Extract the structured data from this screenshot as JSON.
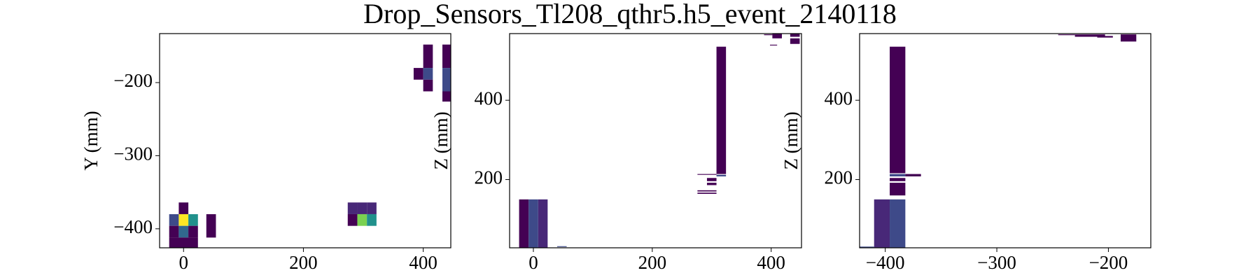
{
  "title": "Drop_Sensors_Tl208_qthr5.h5_event_2140118",
  "chart_data": [
    {
      "type": "heatmap",
      "ylabel": "Y (mm)",
      "xlim": [
        -40,
        446
      ],
      "ylim": [
        -426,
        -133
      ],
      "xticks": [
        0,
        200,
        400
      ],
      "yticks": [
        {
          "value": -200,
          "label": "−200"
        },
        {
          "value": -300,
          "label": "−300"
        },
        {
          "value": -400,
          "label": "−400"
        }
      ],
      "cells": [
        {
          "x": [
            -8,
            8
          ],
          "y": [
            -380,
            -364
          ],
          "color": "#440154"
        },
        {
          "x": [
            -24,
            -8
          ],
          "y": [
            -396,
            -380
          ],
          "color": "#3e4a89"
        },
        {
          "x": [
            -8,
            8
          ],
          "y": [
            -396,
            -380
          ],
          "color": "#fde725"
        },
        {
          "x": [
            8,
            24
          ],
          "y": [
            -396,
            -380
          ],
          "color": "#21918c"
        },
        {
          "x": [
            -24,
            -8
          ],
          "y": [
            -412,
            -396
          ],
          "color": "#440154"
        },
        {
          "x": [
            -8,
            8
          ],
          "y": [
            -412,
            -396
          ],
          "color": "#31688e"
        },
        {
          "x": [
            8,
            24
          ],
          "y": [
            -412,
            -396
          ],
          "color": "#440154"
        },
        {
          "x": [
            -24,
            24
          ],
          "y": [
            -428,
            -412
          ],
          "color": "#440154"
        },
        {
          "x": [
            38,
            54
          ],
          "y": [
            -412,
            -380
          ],
          "color": "#440154"
        },
        {
          "x": [
            274,
            290
          ],
          "y": [
            -380,
            -364
          ],
          "color": "#482878"
        },
        {
          "x": [
            290,
            306
          ],
          "y": [
            -380,
            -364
          ],
          "color": "#482878"
        },
        {
          "x": [
            306,
            322
          ],
          "y": [
            -380,
            -364
          ],
          "color": "#482878"
        },
        {
          "x": [
            274,
            290
          ],
          "y": [
            -396,
            -380
          ],
          "color": "#440154"
        },
        {
          "x": [
            290,
            306
          ],
          "y": [
            -396,
            -380
          ],
          "color": "#7ad151"
        },
        {
          "x": [
            306,
            322
          ],
          "y": [
            -396,
            -380
          ],
          "color": "#21918c"
        },
        {
          "x": [
            384,
            400
          ],
          "y": [
            -196,
            -180
          ],
          "color": "#440154"
        },
        {
          "x": [
            400,
            416
          ],
          "y": [
            -180,
            -148
          ],
          "color": "#440154"
        },
        {
          "x": [
            400,
            416
          ],
          "y": [
            -196,
            -180
          ],
          "color": "#3e4a89"
        },
        {
          "x": [
            400,
            416
          ],
          "y": [
            -212,
            -196
          ],
          "color": "#440154"
        },
        {
          "x": [
            432,
            448
          ],
          "y": [
            -180,
            -148
          ],
          "color": "#440154"
        },
        {
          "x": [
            432,
            448
          ],
          "y": [
            -212,
            -180
          ],
          "color": "#3e4a89"
        },
        {
          "x": [
            432,
            448
          ],
          "y": [
            -226,
            -212
          ],
          "color": "#440154"
        }
      ]
    },
    {
      "type": "heatmap",
      "ylabel": "Z (mm)",
      "xlim": [
        -40,
        451
      ],
      "ylim": [
        28,
        568
      ],
      "xticks": [
        0,
        200,
        400
      ],
      "yticks": [
        200,
        400
      ],
      "cells": [
        {
          "x": [
            -24,
            -8
          ],
          "y": [
            28,
            150
          ],
          "color": "#440154"
        },
        {
          "x": [
            -8,
            8
          ],
          "y": [
            28,
            150
          ],
          "color": "#3e4a89"
        },
        {
          "x": [
            8,
            24
          ],
          "y": [
            28,
            150
          ],
          "color": "#482878"
        },
        {
          "x": [
            40,
            56
          ],
          "y": [
            30,
            32
          ],
          "color": "#3e4a89"
        },
        {
          "x": [
            308,
            324
          ],
          "y": [
            214,
            535
          ],
          "color": "#440154"
        },
        {
          "x": [
            308,
            324
          ],
          "y": [
            208,
            212
          ],
          "color": "#3e4a89"
        },
        {
          "x": [
            276,
            308
          ],
          "y": [
            212,
            214
          ],
          "color": "#440154"
        },
        {
          "x": [
            292,
            308
          ],
          "y": [
            196,
            204
          ],
          "color": "#440154"
        },
        {
          "x": [
            292,
            308
          ],
          "y": [
            186,
            192
          ],
          "color": "#440154"
        },
        {
          "x": [
            276,
            308
          ],
          "y": [
            170,
            173
          ],
          "color": "#440154"
        },
        {
          "x": [
            276,
            308
          ],
          "y": [
            164,
            167
          ],
          "color": "#440154"
        },
        {
          "x": [
            388,
            402
          ],
          "y": [
            564,
            566
          ],
          "color": "#440154"
        },
        {
          "x": [
            402,
            418
          ],
          "y": [
            556,
            568
          ],
          "color": "#440154"
        },
        {
          "x": [
            398,
            410
          ],
          "y": [
            538,
            540
          ],
          "color": "#440154"
        },
        {
          "x": [
            432,
            448
          ],
          "y": [
            542,
            556
          ],
          "color": "#440154"
        },
        {
          "x": [
            432,
            448
          ],
          "y": [
            560,
            568
          ],
          "color": "#440154"
        }
      ]
    },
    {
      "type": "heatmap",
      "ylabel": "Z (mm)",
      "xlim": [
        -423,
        -162
      ],
      "ylim": [
        28,
        568
      ],
      "xticks": [
        {
          "value": -400,
          "label": "−400"
        },
        {
          "value": -300,
          "label": "−300"
        },
        {
          "value": -200,
          "label": "−200"
        }
      ],
      "yticks": [
        200,
        400
      ],
      "cells": [
        {
          "x": [
            -423,
            -410
          ],
          "y": [
            28,
            31
          ],
          "color": "#3e4a89"
        },
        {
          "x": [
            -410,
            -396
          ],
          "y": [
            28,
            150
          ],
          "color": "#482878"
        },
        {
          "x": [
            -396,
            -382
          ],
          "y": [
            28,
            150
          ],
          "color": "#3e4a89"
        },
        {
          "x": [
            -396,
            -382
          ],
          "y": [
            216,
            535
          ],
          "color": "#440154"
        },
        {
          "x": [
            -396,
            -382
          ],
          "y": [
            208,
            214
          ],
          "color": "#3e4a89"
        },
        {
          "x": [
            -382,
            -368
          ],
          "y": [
            208,
            214
          ],
          "color": "#440154"
        },
        {
          "x": [
            -396,
            -382
          ],
          "y": [
            196,
            204
          ],
          "color": "#440154"
        },
        {
          "x": [
            -396,
            -382
          ],
          "y": [
            160,
            192
          ],
          "color": "#440154"
        },
        {
          "x": [
            -245,
            -230
          ],
          "y": [
            564,
            566
          ],
          "color": "#440154"
        },
        {
          "x": [
            -230,
            -203
          ],
          "y": [
            560,
            566
          ],
          "color": "#440154"
        },
        {
          "x": [
            -210,
            -196
          ],
          "y": [
            558,
            562
          ],
          "color": "#440154"
        },
        {
          "x": [
            -189,
            -175
          ],
          "y": [
            548,
            566
          ],
          "color": "#440154"
        }
      ]
    }
  ]
}
